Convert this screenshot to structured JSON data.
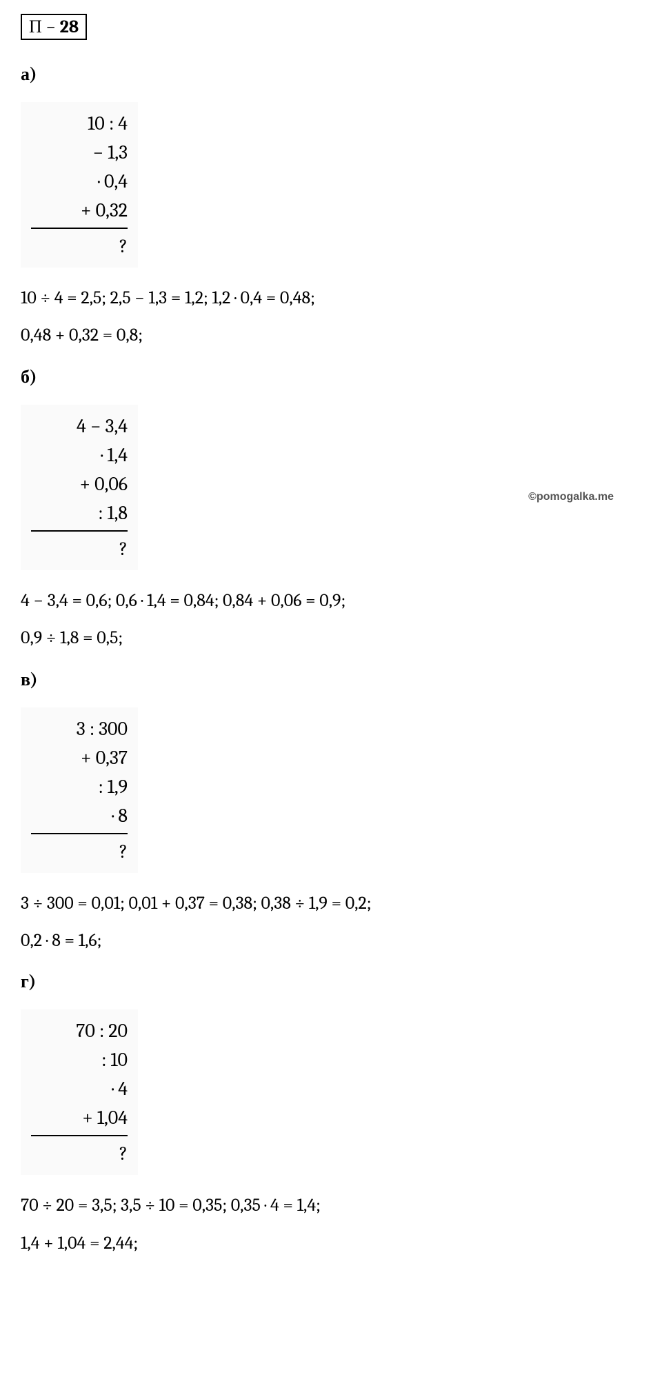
{
  "header": {
    "prefix": "П − ",
    "number": "28"
  },
  "watermark": "©pomogalka.me",
  "sections": [
    {
      "label": "а)",
      "problem": {
        "rows": [
          "10 : 4",
          "− 1,3",
          "· 0,4",
          "+ 0,32"
        ],
        "result": "?"
      },
      "solution": [
        "10 ÷ 4 = 2,5;   2,5 − 1,3 = 1,2;   1,2 · 0,4 = 0,48;",
        "0,48 + 0,32 = 0,8;"
      ]
    },
    {
      "label": "б)",
      "problem": {
        "rows": [
          "4 − 3,4",
          "· 1,4",
          "+ 0,06",
          ": 1,8"
        ],
        "result": "?"
      },
      "solution": [
        "4 − 3,4 = 0,6;   0,6 · 1,4 = 0,84;   0,84 + 0,06 = 0,9;",
        " 0,9 ÷ 1,8 = 0,5;"
      ],
      "watermarkHere": true
    },
    {
      "label": "в)",
      "problem": {
        "rows": [
          "3 : 300",
          "+ 0,37",
          ": 1,9",
          "· 8"
        ],
        "result": "?"
      },
      "solution": [
        "3 ÷ 300 = 0,01;   0,01 + 0,37 = 0,38;   0,38 ÷ 1,9 = 0,2;",
        "0,2 · 8 = 1,6;"
      ]
    },
    {
      "label": "г)",
      "problem": {
        "rows": [
          "70 : 20",
          ": 10",
          "· 4",
          "+ 1,04"
        ],
        "result": "?"
      },
      "solution": [
        "70 ÷ 20 = 3,5;   3,5 ÷ 10 = 0,35;   0,35 · 4 = 1,4;",
        "1,4 + 1,04 = 2,44;"
      ]
    }
  ]
}
